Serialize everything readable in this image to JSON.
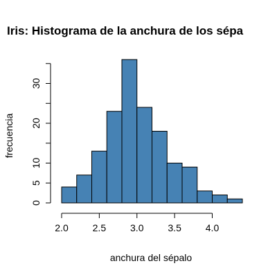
{
  "chart_data": {
    "type": "bar",
    "title": "Iris: Histograma de la anchura de los sépa",
    "xlabel": "anchura del sépalo",
    "ylabel": "frecuencia",
    "bins": [
      {
        "start": 2.0,
        "end": 2.2,
        "count": 4
      },
      {
        "start": 2.2,
        "end": 2.4,
        "count": 7
      },
      {
        "start": 2.4,
        "end": 2.6,
        "count": 13
      },
      {
        "start": 2.6,
        "end": 2.8,
        "count": 23
      },
      {
        "start": 2.8,
        "end": 3.0,
        "count": 36
      },
      {
        "start": 3.0,
        "end": 3.2,
        "count": 24
      },
      {
        "start": 3.2,
        "end": 3.4,
        "count": 18
      },
      {
        "start": 3.4,
        "end": 3.6,
        "count": 10
      },
      {
        "start": 3.6,
        "end": 3.8,
        "count": 9
      },
      {
        "start": 3.8,
        "end": 4.0,
        "count": 3
      },
      {
        "start": 4.0,
        "end": 4.2,
        "count": 2
      },
      {
        "start": 4.2,
        "end": 4.4,
        "count": 1
      }
    ],
    "x_ticks": [
      {
        "value": 2.0,
        "label": "2.0"
      },
      {
        "value": 2.5,
        "label": "2.5"
      },
      {
        "value": 3.0,
        "label": "3.0"
      },
      {
        "value": 3.5,
        "label": "3.5"
      },
      {
        "value": 4.0,
        "label": "4.0"
      }
    ],
    "y_ticks": [
      {
        "value": 0,
        "label": "0"
      },
      {
        "value": 5,
        "label": "5"
      },
      {
        "value": 10,
        "label": "10"
      },
      {
        "value": 15,
        "label": ""
      },
      {
        "value": 20,
        "label": "20"
      },
      {
        "value": 25,
        "label": ""
      },
      {
        "value": 30,
        "label": "30"
      },
      {
        "value": 35,
        "label": ""
      }
    ],
    "xlim": [
      2.0,
      4.4
    ],
    "ylim": [
      0,
      36
    ],
    "grid": false,
    "colors": {
      "bar_fill": "#4682b4",
      "bar_edge": "#000000"
    }
  }
}
